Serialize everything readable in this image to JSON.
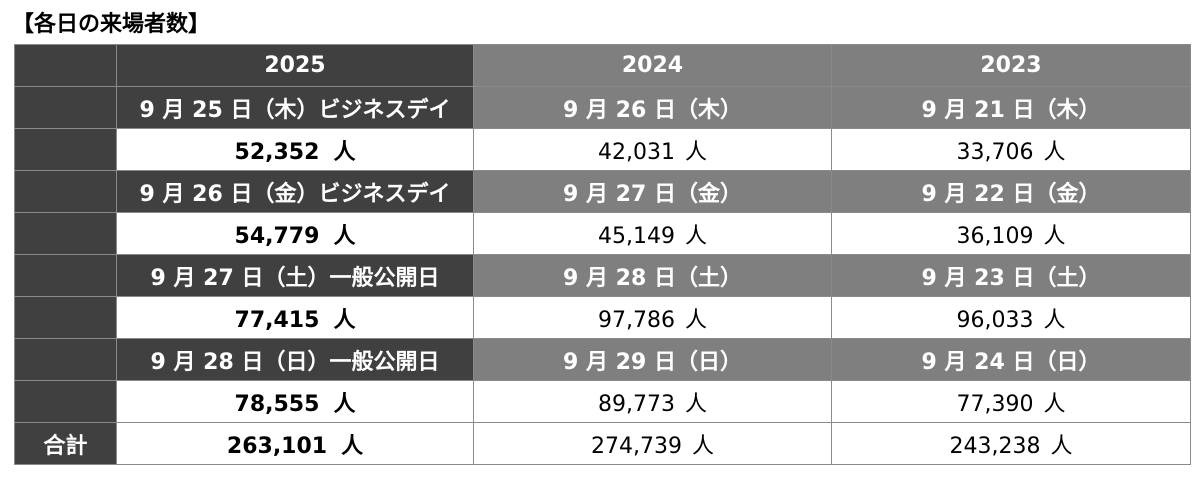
{
  "title": "【各日の来場者数】",
  "unit": "人",
  "years": [
    "2025",
    "2024",
    "2023"
  ],
  "days": [
    {
      "dates": [
        "9 月 25 日（木）ビジネスデイ",
        "9 月 26 日（木）",
        "9 月 21 日（木）"
      ],
      "values": [
        "52,352",
        "42,031",
        "33,706"
      ]
    },
    {
      "dates": [
        "9 月 26 日（金）ビジネスデイ",
        "9 月 27 日（金）",
        "9 月 22 日（金）"
      ],
      "values": [
        "54,779",
        "45,149",
        "36,109"
      ]
    },
    {
      "dates": [
        "9 月 27 日（土）一般公開日",
        "9 月 28 日（土）",
        "9 月 23 日（土）"
      ],
      "values": [
        "77,415",
        "97,786",
        "96,033"
      ]
    },
    {
      "dates": [
        "9 月 28 日（日）一般公開日",
        "9 月 29 日（日）",
        "9 月 24 日（日）"
      ],
      "values": [
        "78,555",
        "89,773",
        "77,390"
      ]
    }
  ],
  "total": {
    "label": "合計",
    "values": [
      "263,101",
      "274,739",
      "243,238"
    ]
  },
  "colors": {
    "dark_header": "#404040",
    "mid_header": "#7f7f7f",
    "border": "#8a8a8a"
  }
}
